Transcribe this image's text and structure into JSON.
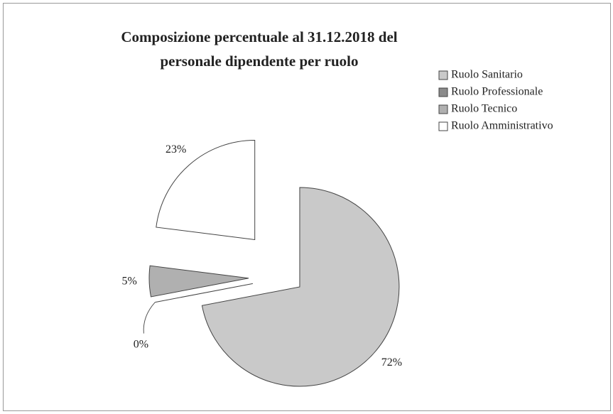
{
  "chart_data": {
    "type": "pie",
    "title": "Composizione percentuale al 31.12.2018 del personale dipendente per ruolo",
    "categories": [
      "Ruolo Sanitario",
      "Ruolo Professionale",
      "Ruolo Tecnico",
      "Ruolo Amministrativo"
    ],
    "values": [
      72,
      0,
      5,
      23
    ],
    "value_labels": [
      "72%",
      "0%",
      "5%",
      "23%"
    ],
    "colors": [
      "#c9c9c9",
      "#8a8a8a",
      "#b0b0b0",
      "#ffffff"
    ],
    "legend": "right"
  }
}
